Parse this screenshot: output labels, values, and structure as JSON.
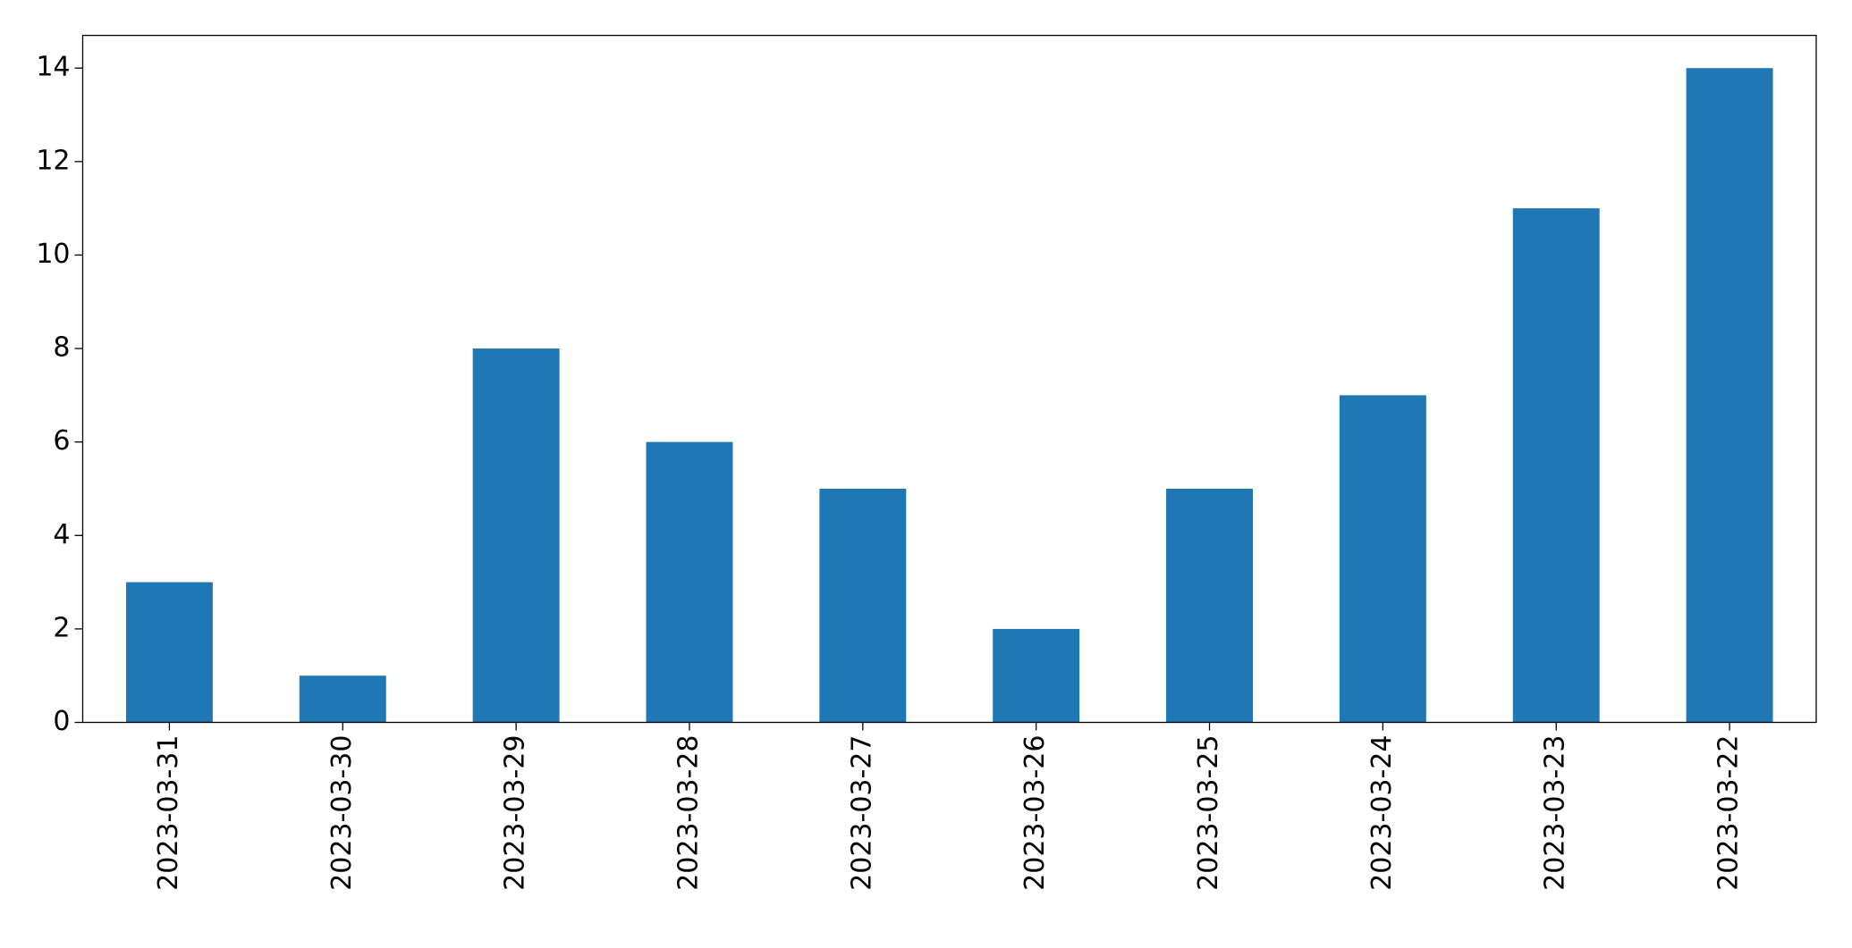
{
  "chart_data": {
    "type": "bar",
    "categories": [
      "2023-03-31",
      "2023-03-30",
      "2023-03-29",
      "2023-03-28",
      "2023-03-27",
      "2023-03-26",
      "2023-03-25",
      "2023-03-24",
      "2023-03-23",
      "2023-03-22"
    ],
    "values": [
      3,
      1,
      8,
      6,
      5,
      2,
      5,
      7,
      11,
      14
    ],
    "color": "#1f77b4",
    "ylim": [
      0,
      14.7
    ],
    "yticks": [
      0,
      2,
      4,
      6,
      8,
      10,
      12,
      14
    ],
    "grid": false
  }
}
